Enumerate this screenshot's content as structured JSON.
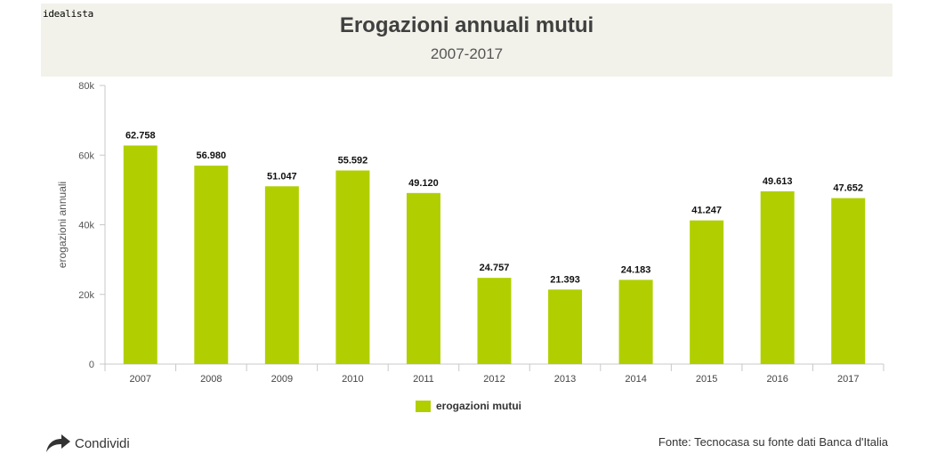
{
  "header": {
    "brand": "idealista",
    "title": "Erogazioni annuali mutui",
    "subtitle": "2007-2017"
  },
  "colors": {
    "bar": "#b1cf00",
    "header_bg": "#f2f2ea",
    "axis": "#c8c8c8"
  },
  "chart_data": {
    "type": "bar",
    "title": "Erogazioni annuali mutui",
    "subtitle": "2007-2017",
    "categories": [
      "2007",
      "2008",
      "2009",
      "2010",
      "2011",
      "2012",
      "2013",
      "2014",
      "2015",
      "2016",
      "2017"
    ],
    "series": [
      {
        "name": "erogazioni mutui",
        "values": [
          62758,
          56980,
          51047,
          55592,
          49120,
          24757,
          21393,
          24183,
          41247,
          49613,
          47652
        ],
        "data_labels": [
          "62.758",
          "56.980",
          "51.047",
          "55.592",
          "49.120",
          "24.757",
          "21.393",
          "24.183",
          "41.247",
          "49.613",
          "47.652"
        ]
      }
    ],
    "xlabel": "",
    "ylabel": "erogazioni annuali",
    "ylim": [
      0,
      80000
    ],
    "yticks": [
      0,
      20000,
      40000,
      60000,
      80000
    ],
    "ytick_labels": [
      "0",
      "20k",
      "40k",
      "60k",
      "80k"
    ],
    "grid": false,
    "legend": "bottom"
  },
  "legend": {
    "label": "erogazioni mutui"
  },
  "footer": {
    "share_label": "Condividi",
    "share_icon": "share-arrow-icon",
    "source": "Fonte: Tecnocasa su fonte dati Banca d'Italia"
  }
}
